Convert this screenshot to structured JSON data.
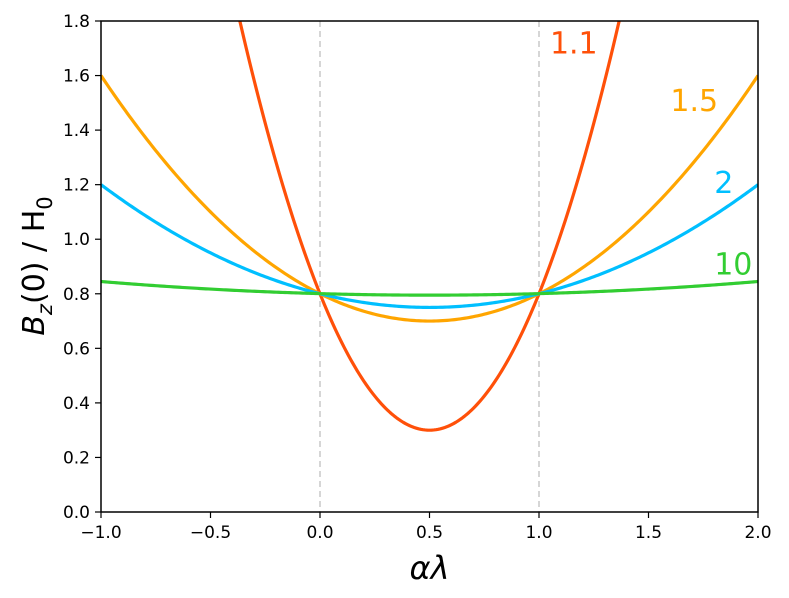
{
  "chart_data": {
    "type": "line",
    "xlabel": "αλ",
    "ylabel": {
      "main": "B",
      "sub_main": "z",
      "mid": "(0) / H",
      "sub_end": "0"
    },
    "xlim": [
      -1.0,
      2.0
    ],
    "ylim": [
      0.0,
      1.8
    ],
    "x_ticks": [
      -1.0,
      -0.5,
      0.0,
      0.5,
      1.0,
      1.5,
      2.0
    ],
    "x_tick_labels": [
      "−1.0",
      "−0.5",
      "0.0",
      "0.5",
      "1.0",
      "1.5",
      "2.0"
    ],
    "y_ticks": [
      0.0,
      0.2,
      0.4,
      0.6,
      0.8,
      1.0,
      1.2,
      1.4,
      1.6,
      1.8
    ],
    "y_tick_labels": [
      "0.0",
      "0.2",
      "0.4",
      "0.6",
      "0.8",
      "1.0",
      "1.2",
      "1.4",
      "1.6",
      "1.8"
    ],
    "vlines": [
      0.0,
      1.0
    ],
    "grid": false,
    "series": [
      {
        "label": "1.1",
        "color": "#ff5009",
        "min_value": 0.3,
        "min_at": 0.5,
        "curvature": 2.0,
        "label_at": [
          1.05,
          1.68
        ]
      },
      {
        "label": "1.5",
        "color": "#ffa500",
        "min_value": 0.7,
        "min_at": 0.5,
        "curvature": 0.4,
        "label_at": [
          1.6,
          1.47
        ]
      },
      {
        "label": "2",
        "color": "#00bfff",
        "min_value": 0.75,
        "min_at": 0.5,
        "curvature": 0.2,
        "label_at": [
          1.8,
          1.17
        ]
      },
      {
        "label": "10",
        "color": "#32cd32",
        "min_value": 0.795,
        "min_at": 0.5,
        "curvature": 0.0222,
        "label_at": [
          1.8,
          0.87
        ]
      }
    ]
  }
}
